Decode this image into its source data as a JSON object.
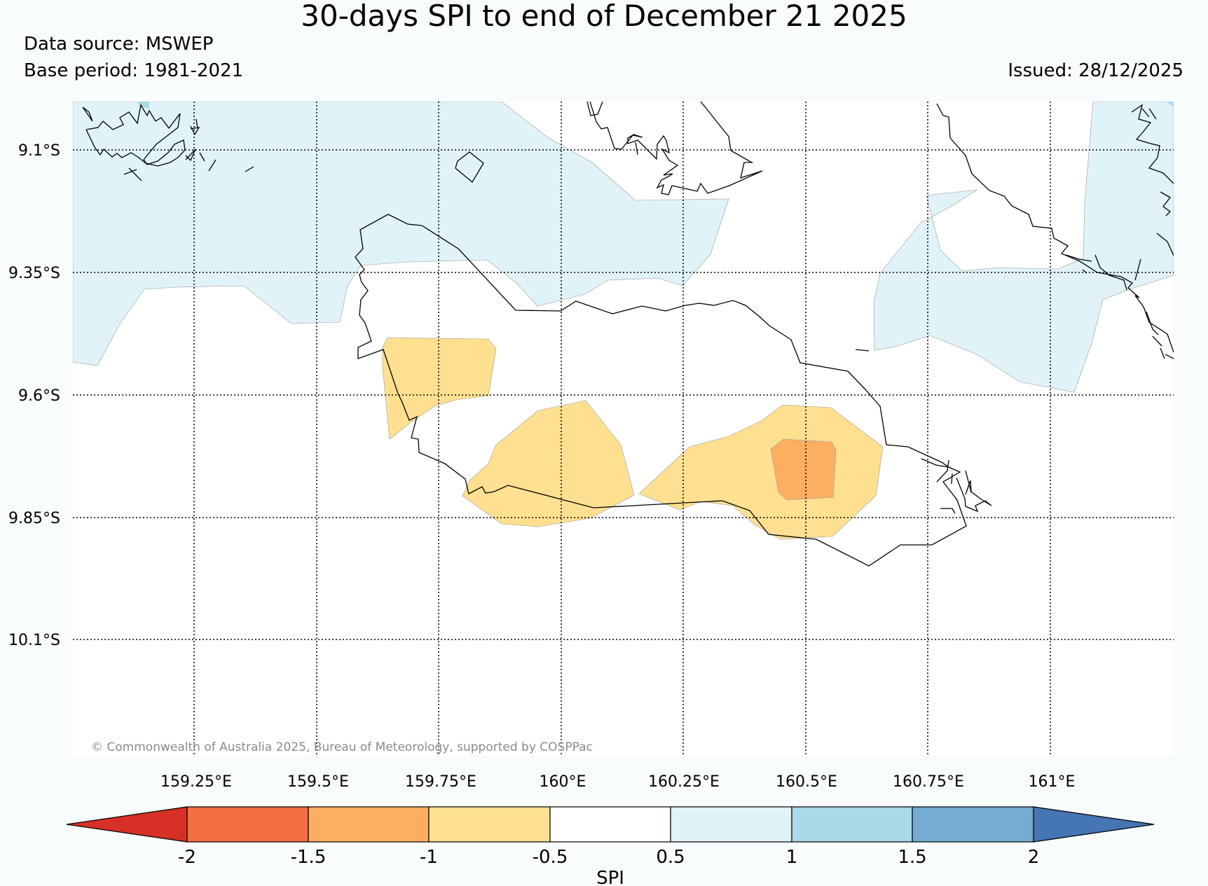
{
  "header": {
    "title": "30-days SPI to end of December 21 2025",
    "data_source": "Data source: MSWEP",
    "base_period": "Base period: 1981-2021",
    "issued": "Issued: 28/12/2025"
  },
  "map": {
    "lat_labels": [
      "9.1°S",
      "9.35°S",
      "9.6°S",
      "9.85°S",
      "10.1°S"
    ],
    "lon_labels": [
      "159.25°E",
      "159.5°E",
      "159.75°E",
      "160°E",
      "160.25°E",
      "160.5°E",
      "160.75°E",
      "161°E"
    ],
    "credit": "© Commonwealth of Australia 2025, Bureau of Meteorology, supported by COSPPac"
  },
  "colorbar": {
    "label": "SPI",
    "ticks": [
      "-2",
      "-1.5",
      "-1",
      "-0.5",
      "0.5",
      "1",
      "1.5",
      "2"
    ],
    "colors": [
      "#d73027",
      "#f46d43",
      "#fdae61",
      "#fee090",
      "#ffffff",
      "#e0f3f8",
      "#abd9e9",
      "#74add1",
      "#4575b4"
    ]
  }
}
